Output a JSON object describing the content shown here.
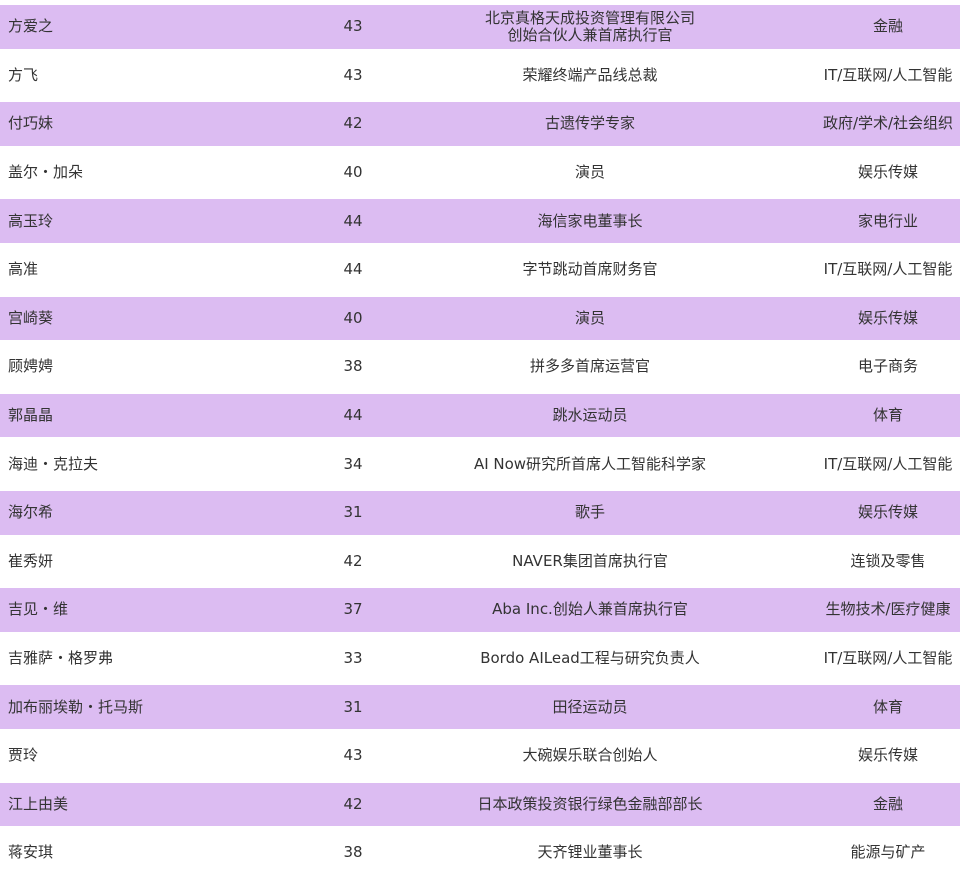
{
  "colors": {
    "band": "#dcbcf2",
    "text": "#333333"
  },
  "rows": [
    {
      "name": "方爱之",
      "age": "43",
      "title": "北京真格天成投资管理有限公司",
      "title2": "创始合伙人兼首席执行官",
      "industry": "金融"
    },
    {
      "name": "方飞",
      "age": "43",
      "title": "荣耀终端产品线总裁",
      "industry": "IT/互联网/人工智能"
    },
    {
      "name": "付巧妹",
      "age": "42",
      "title": "古遗传学专家",
      "industry": "政府/学术/社会组织"
    },
    {
      "name": "盖尔・加朵",
      "age": "40",
      "title": "演员",
      "industry": "娱乐传媒"
    },
    {
      "name": "高玉玲",
      "age": "44",
      "title": "海信家电董事长",
      "industry": "家电行业"
    },
    {
      "name": "高准",
      "age": "44",
      "title": "字节跳动首席财务官",
      "industry": "IT/互联网/人工智能"
    },
    {
      "name": "宫崎葵",
      "age": "40",
      "title": "演员",
      "industry": "娱乐传媒"
    },
    {
      "name": "顾娉娉",
      "age": "38",
      "title": "拼多多首席运营官",
      "industry": "电子商务"
    },
    {
      "name": "郭晶晶",
      "age": "44",
      "title": "跳水运动员",
      "industry": "体育"
    },
    {
      "name": "海迪・克拉夫",
      "age": "34",
      "title": "AI Now研究所首席人工智能科学家",
      "industry": "IT/互联网/人工智能"
    },
    {
      "name": "海尔希",
      "age": "31",
      "title": "歌手",
      "industry": "娱乐传媒"
    },
    {
      "name": "崔秀妍",
      "age": "42",
      "title": "NAVER集团首席执行官",
      "industry": "连锁及零售"
    },
    {
      "name": "吉见・维",
      "age": "37",
      "title": "Aba Inc.创始人兼首席执行官",
      "industry": "生物技术/医疗健康"
    },
    {
      "name": "吉雅萨・格罗弗",
      "age": "33",
      "title": "Bordo AILead工程与研究负责人",
      "industry": "IT/互联网/人工智能"
    },
    {
      "name": "加布丽埃勒・托马斯",
      "age": "31",
      "title": "田径运动员",
      "industry": "体育"
    },
    {
      "name": "贾玲",
      "age": "43",
      "title": "大碗娱乐联合创始人",
      "industry": "娱乐传媒"
    },
    {
      "name": "江上由美",
      "age": "42",
      "title": "日本政策投资银行绿色金融部部长",
      "industry": "金融"
    },
    {
      "name": "蒋安琪",
      "age": "38",
      "title": "天齐锂业董事长",
      "industry": "能源与矿产"
    }
  ]
}
